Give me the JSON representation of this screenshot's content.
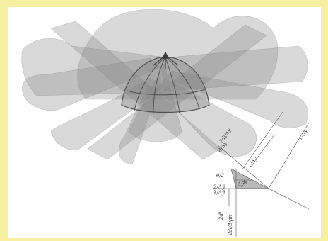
{
  "colors": {
    "background": "#f7f0a0",
    "panel": "#ffffff",
    "planes": "#8a8a8a",
    "dome_lines": "#5a5a5a"
  },
  "labels": {
    "l1": "d/Δy",
    "l2": "2dl/Δy",
    "l3": "θ/2",
    "l4": "ds",
    "l5": "2/Δy",
    "l6": "λ/Δy",
    "l7": "Δy",
    "l8": "2dl",
    "l9": "c/Δy",
    "l10": "λ-Δy",
    "l11": "2dl/Δym"
  }
}
